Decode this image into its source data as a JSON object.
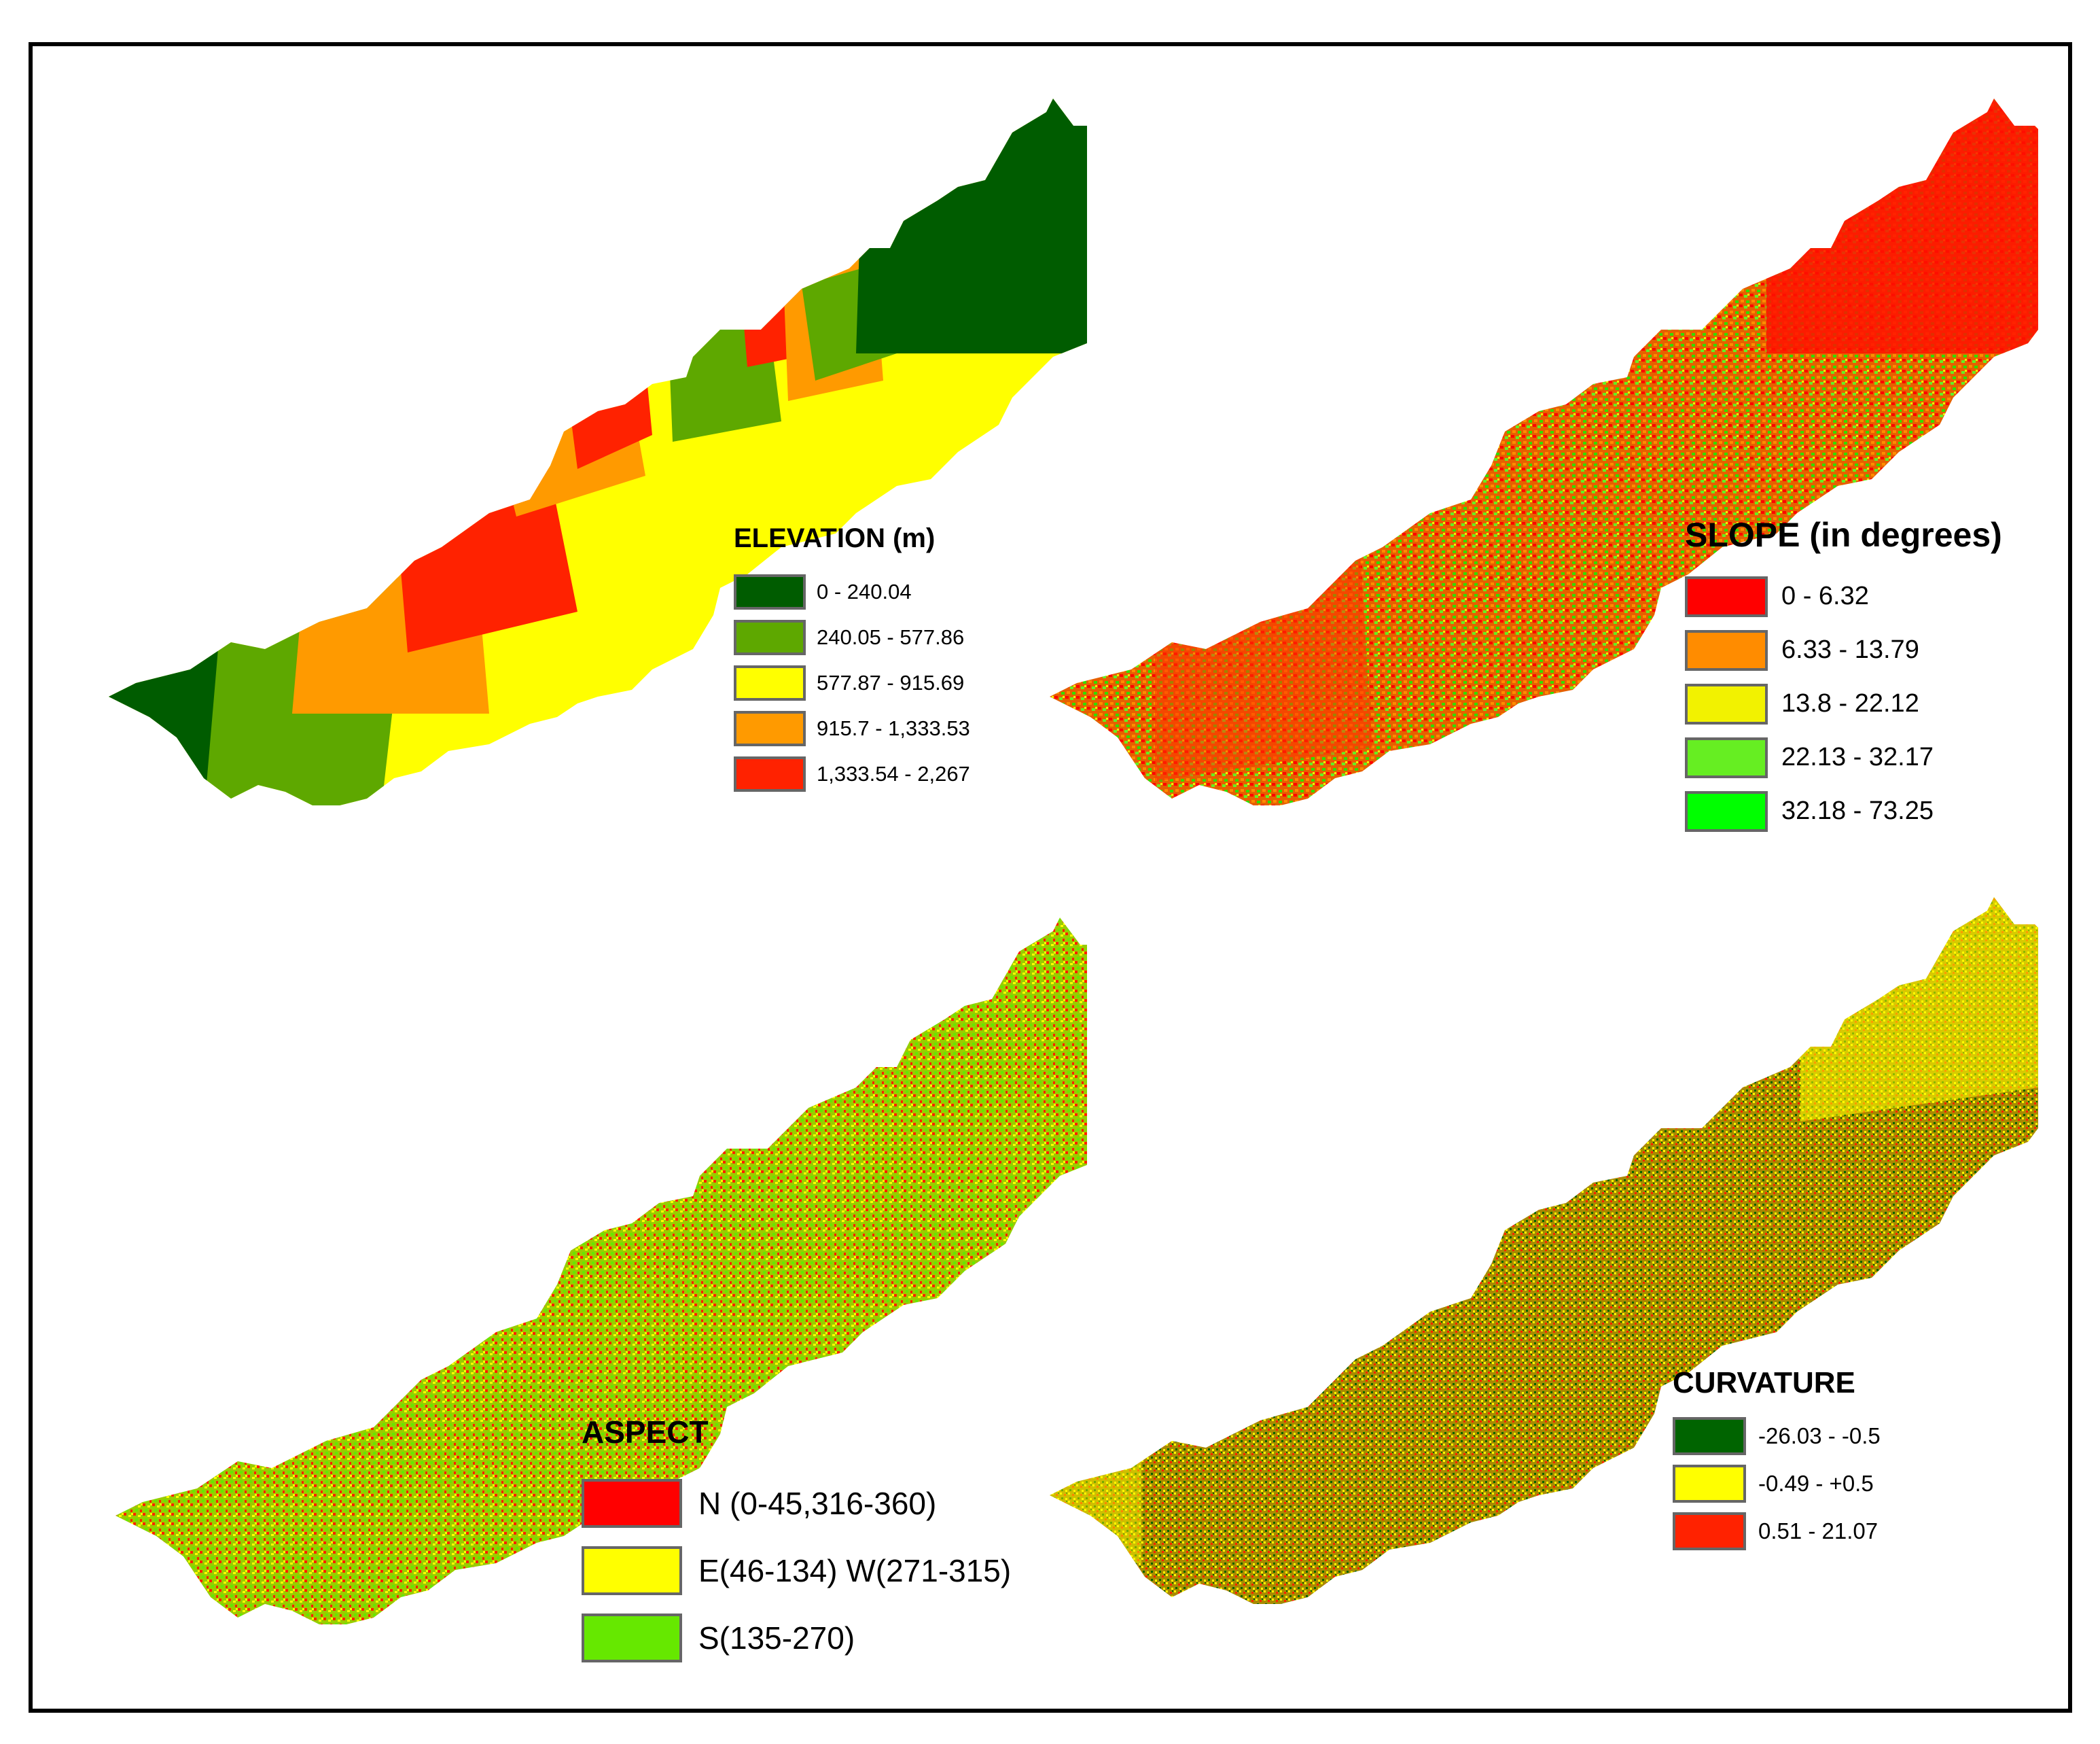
{
  "maps": {
    "elevation": {
      "title": "ELEVATION (m)",
      "classes": [
        {
          "label": "0 - 240.04",
          "color": "#005c00"
        },
        {
          "label": "240.05 - 577.86",
          "color": "#5ea800"
        },
        {
          "label": "577.87 - 915.69",
          "color": "#ffff00"
        },
        {
          "label": "915.7 - 1,333.53",
          "color": "#ff9a00"
        },
        {
          "label": "1,333.54 - 2,267",
          "color": "#ff2200"
        }
      ]
    },
    "slope": {
      "title": "SLOPE (in degrees)",
      "classes": [
        {
          "label": "0 - 6.32",
          "color": "#ff0000"
        },
        {
          "label": "6.33 - 13.79",
          "color": "#ff8c00"
        },
        {
          "label": "13.8 - 22.12",
          "color": "#f2f200"
        },
        {
          "label": "22.13 - 32.17",
          "color": "#66ee22"
        },
        {
          "label": "32.18 - 73.25",
          "color": "#00ff00"
        }
      ]
    },
    "aspect": {
      "title": "ASPECT",
      "classes": [
        {
          "label": "N (0-45,316-360)",
          "color": "#ff0000"
        },
        {
          "label": "E(46-134) W(271-315)",
          "color": "#ffff00"
        },
        {
          "label": "S(135-270)",
          "color": "#66e800"
        }
      ]
    },
    "curvature": {
      "title": "CURVATURE",
      "classes": [
        {
          "label": "-26.03 - -0.5",
          "color": "#006400"
        },
        {
          "label": "-0.49 - +0.5",
          "color": "#ffff00"
        },
        {
          "label": "0.51 - 21.07",
          "color": "#ff2200"
        }
      ]
    }
  }
}
